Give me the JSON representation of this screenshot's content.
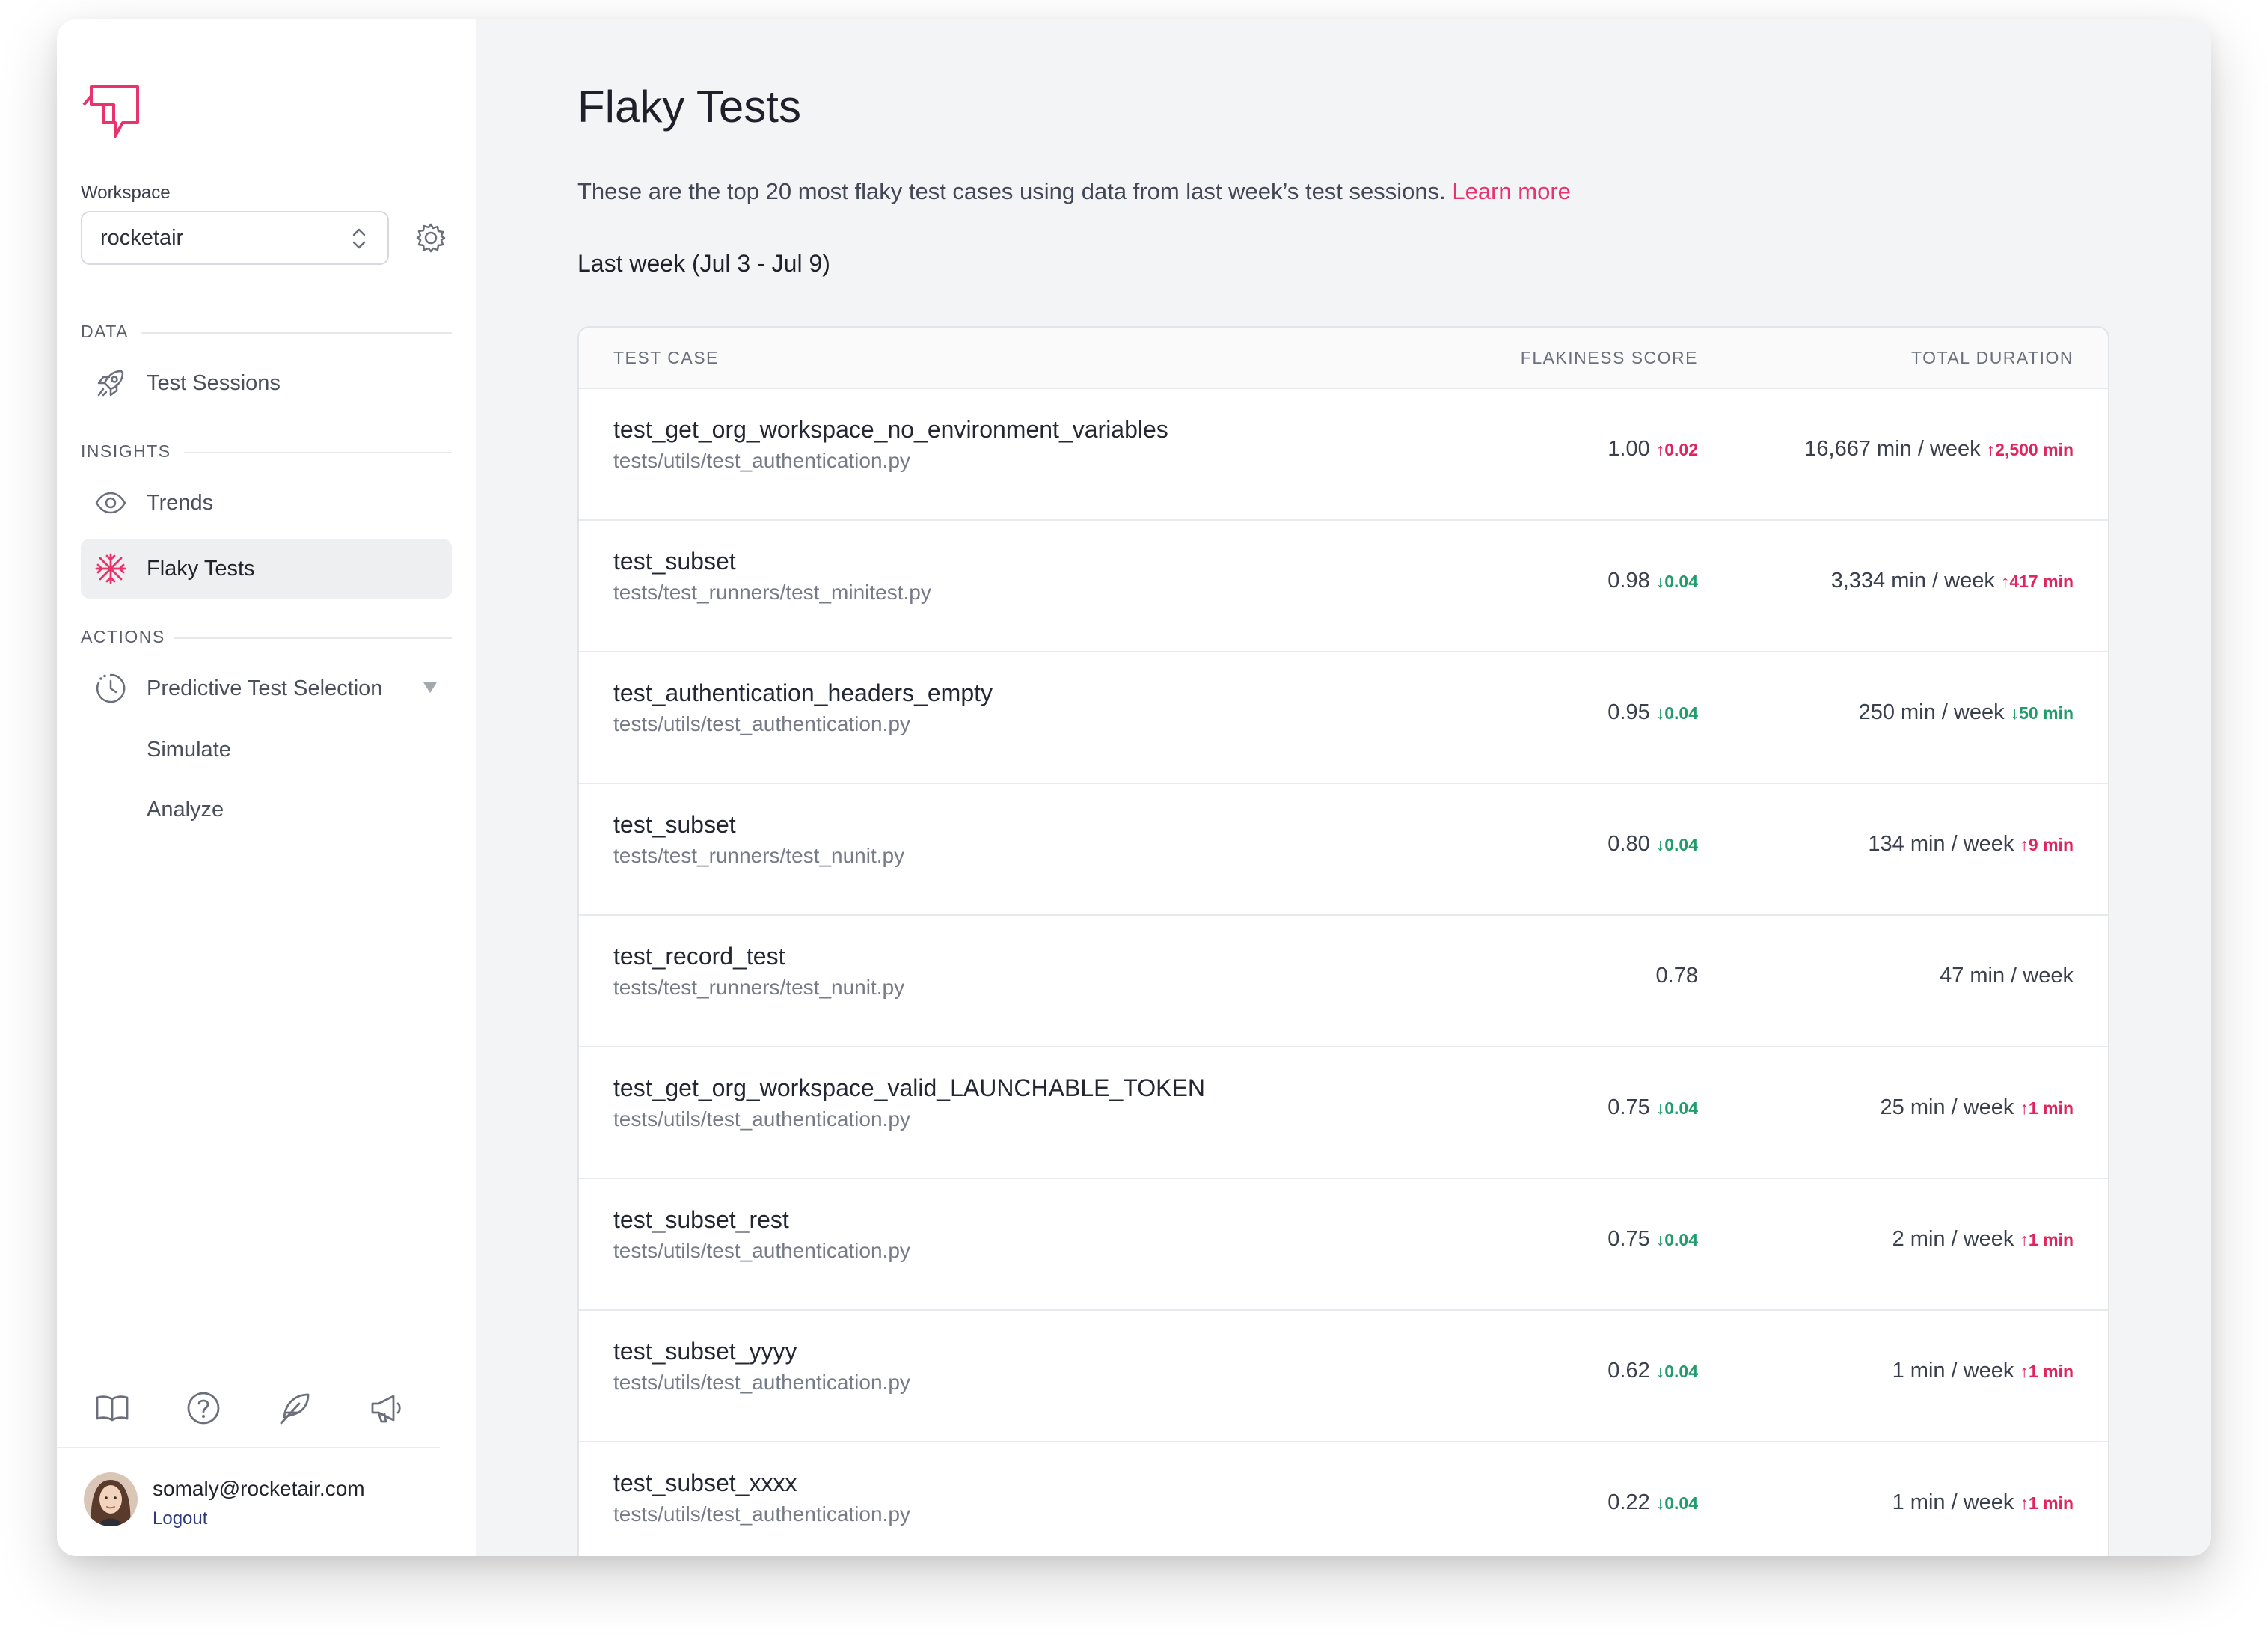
{
  "sidebar": {
    "workspace_label": "Workspace",
    "workspace_value": "rocketair",
    "sections": {
      "data": "DATA",
      "insights": "INSIGHTS",
      "actions": "ACTIONS"
    },
    "items": [
      {
        "label": "Test Sessions",
        "icon": "rocket-icon"
      },
      {
        "label": "Trends",
        "icon": "eye-icon"
      },
      {
        "label": "Flaky Tests",
        "icon": "snowflake-icon",
        "active": true
      },
      {
        "label": "Predictive Test Selection",
        "icon": "clock-icon"
      }
    ],
    "subitems": [
      "Simulate",
      "Analyze"
    ],
    "footer": {
      "email": "somaly@rocketair.com",
      "logout": "Logout"
    }
  },
  "main": {
    "title": "Flaky Tests",
    "subtitle": "These are the top 20 most flaky test cases using data from last week’s test sessions.",
    "learn_more": "Learn more",
    "period": "Last week (Jul 3 - Jul 9)",
    "table": {
      "headers": [
        "TEST CASE",
        "FLAKINESS SCORE",
        "TOTAL DURATION"
      ],
      "rows": [
        {
          "name": "test_get_org_workspace_no_environment_variables",
          "path": "tests/utils/test_authentication.py",
          "score": "1.00",
          "score_delta": "↑0.02",
          "score_dir": "up",
          "duration": "16,667 min / week",
          "dur_delta": "↑2,500 min",
          "dur_dir": "up"
        },
        {
          "name": "test_subset",
          "path": "tests/test_runners/test_minitest.py",
          "score": "0.98",
          "score_delta": "↓0.04",
          "score_dir": "down",
          "duration": "3,334 min / week",
          "dur_delta": "↑417 min",
          "dur_dir": "up"
        },
        {
          "name": "test_authentication_headers_empty",
          "path": "tests/utils/test_authentication.py",
          "score": "0.95",
          "score_delta": "↓0.04",
          "score_dir": "down",
          "duration": "250 min / week",
          "dur_delta": "↓50 min",
          "dur_dir": "down"
        },
        {
          "name": "test_subset",
          "path": "tests/test_runners/test_nunit.py",
          "score": "0.80",
          "score_delta": "↓0.04",
          "score_dir": "down",
          "duration": "134 min / week",
          "dur_delta": "↑9 min",
          "dur_dir": "up"
        },
        {
          "name": "test_record_test",
          "path": "tests/test_runners/test_nunit.py",
          "score": "0.78",
          "score_delta": "",
          "score_dir": "none",
          "duration": "47 min / week",
          "dur_delta": "",
          "dur_dir": "none"
        },
        {
          "name": "test_get_org_workspace_valid_LAUNCHABLE_TOKEN",
          "path": "tests/utils/test_authentication.py",
          "score": "0.75",
          "score_delta": "↓0.04",
          "score_dir": "down",
          "duration": "25 min / week",
          "dur_delta": "↑1 min",
          "dur_dir": "up"
        },
        {
          "name": "test_subset_rest",
          "path": "tests/utils/test_authentication.py",
          "score": "0.75",
          "score_delta": "↓0.04",
          "score_dir": "down",
          "duration": "2 min / week",
          "dur_delta": "↑1 min",
          "dur_dir": "up"
        },
        {
          "name": "test_subset_yyyy",
          "path": "tests/utils/test_authentication.py",
          "score": "0.62",
          "score_delta": "↓0.04",
          "score_dir": "down",
          "duration": "1 min / week",
          "dur_delta": "↑1 min",
          "dur_dir": "up"
        },
        {
          "name": "test_subset_xxxx",
          "path": "tests/utils/test_authentication.py",
          "score": "0.22",
          "score_delta": "↓0.04",
          "score_dir": "down",
          "duration": "1 min / week",
          "dur_delta": "↑1 min",
          "dur_dir": "up"
        }
      ]
    }
  },
  "colors": {
    "accent": "#e8336d",
    "up": "#e0245e",
    "down": "#1f9d6b",
    "active_bg": "#eeeff1"
  }
}
